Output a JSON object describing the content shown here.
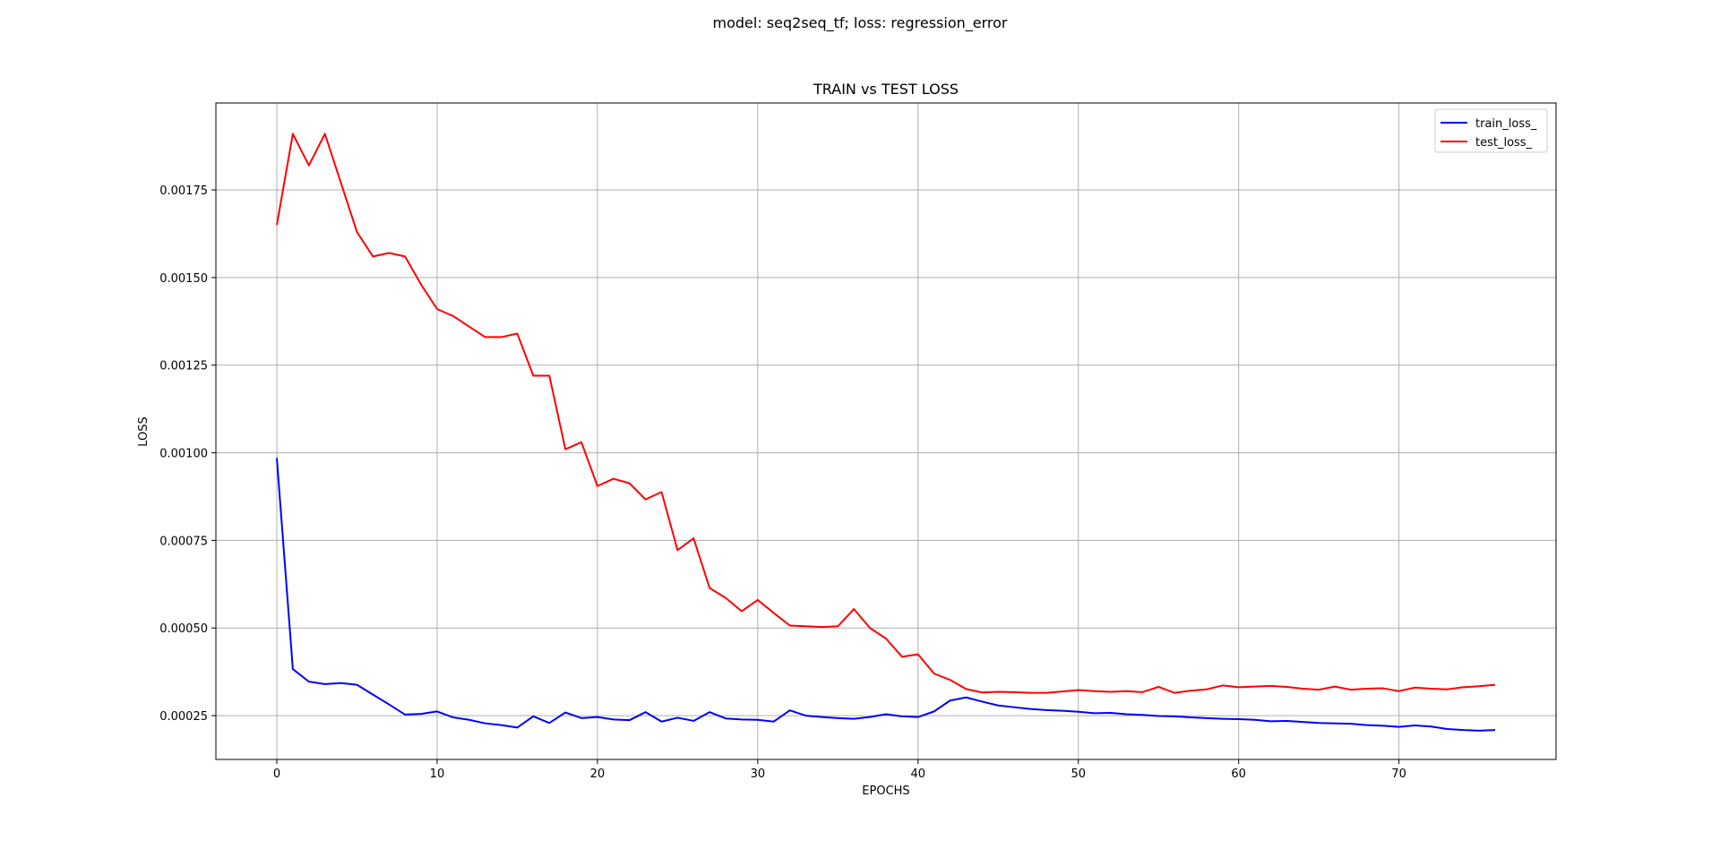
{
  "figure": {
    "suptitle": "model: seq2seq_tf; loss: regression_error"
  },
  "chart_data": {
    "type": "line",
    "title": "TRAIN vs TEST LOSS",
    "xlabel": "EPOCHS",
    "ylabel": "LOSS",
    "xlim": [
      -3.8,
      79.8
    ],
    "ylim": [
      0.000125,
      0.001998
    ],
    "x_ticks": [
      0,
      10,
      20,
      30,
      40,
      50,
      60,
      70
    ],
    "x_tick_labels": [
      "0",
      "10",
      "20",
      "30",
      "40",
      "50",
      "60",
      "70"
    ],
    "y_ticks": [
      0.00025,
      0.0005,
      0.00075,
      0.001,
      0.00125,
      0.0015,
      0.00175
    ],
    "y_tick_labels": [
      "0.00025",
      "0.00050",
      "0.00075",
      "0.00100",
      "0.00125",
      "0.00150",
      "0.00175"
    ],
    "grid": true,
    "legend_position": "top-right",
    "x": [
      0,
      1,
      2,
      3,
      4,
      5,
      6,
      7,
      8,
      9,
      10,
      11,
      12,
      13,
      14,
      15,
      16,
      17,
      18,
      19,
      20,
      21,
      22,
      23,
      24,
      25,
      26,
      27,
      28,
      29,
      30,
      31,
      32,
      33,
      34,
      35,
      36,
      37,
      38,
      39,
      40,
      41,
      42,
      43,
      44,
      45,
      46,
      47,
      48,
      49,
      50,
      51,
      52,
      53,
      54,
      55,
      56,
      57,
      58,
      59,
      60,
      61,
      62,
      63,
      64,
      65,
      66,
      67,
      68,
      69,
      70,
      71,
      72,
      73,
      74,
      75,
      76
    ],
    "series": [
      {
        "name": "train_loss_",
        "color": "#0000ff",
        "values": [
          0.000985,
          0.000383,
          0.000347,
          0.00034,
          0.000343,
          0.000338,
          0.00031,
          0.000282,
          0.000253,
          0.000255,
          0.000262,
          0.000245,
          0.000238,
          0.000228,
          0.000223,
          0.000216,
          0.000248,
          0.000229,
          0.000259,
          0.000243,
          0.000246,
          0.000239,
          0.000237,
          0.00026,
          0.000233,
          0.000244,
          0.000235,
          0.00026,
          0.000242,
          0.000239,
          0.000238,
          0.000233,
          0.000265,
          0.00025,
          0.000246,
          0.000243,
          0.000241,
          0.000246,
          0.000254,
          0.000248,
          0.000246,
          0.000262,
          0.000293,
          0.000302,
          0.00029,
          0.000279,
          0.000274,
          0.000269,
          0.000266,
          0.000264,
          0.000261,
          0.000257,
          0.000258,
          0.000254,
          0.000252,
          0.000249,
          0.000248,
          0.000245,
          0.000243,
          0.000241,
          0.00024,
          0.000238,
          0.000234,
          0.000235,
          0.000232,
          0.000229,
          0.000228,
          0.000227,
          0.000223,
          0.000221,
          0.000218,
          0.000222,
          0.000219,
          0.000212,
          0.000209,
          0.000207,
          0.000209
        ]
      },
      {
        "name": "test_loss_",
        "color": "#ff0000",
        "values": [
          0.00165,
          0.00191,
          0.00182,
          0.00191,
          0.00177,
          0.00163,
          0.00156,
          0.00157,
          0.00156,
          0.00148,
          0.00141,
          0.00139,
          0.00136,
          0.00133,
          0.00133,
          0.00134,
          0.00122,
          0.00122,
          0.00101,
          0.00103,
          0.000905,
          0.000926,
          0.000913,
          0.000867,
          0.000888,
          0.000722,
          0.000756,
          0.000614,
          0.000586,
          0.000548,
          0.00058,
          0.000543,
          0.000507,
          0.000505,
          0.000503,
          0.000505,
          0.000554,
          0.0005,
          0.00047,
          0.000418,
          0.000425,
          0.00037,
          0.000352,
          0.000326,
          0.000316,
          0.000318,
          0.000317,
          0.000315,
          0.000315,
          0.000319,
          0.000323,
          0.00032,
          0.000318,
          0.00032,
          0.000317,
          0.000332,
          0.000315,
          0.000321,
          0.000325,
          0.000336,
          0.000331,
          0.000333,
          0.000335,
          0.000332,
          0.000327,
          0.000324,
          0.000333,
          0.000324,
          0.000327,
          0.000328,
          0.00032,
          0.00033,
          0.000327,
          0.000325,
          0.000331,
          0.000334,
          0.000338
        ]
      }
    ]
  }
}
